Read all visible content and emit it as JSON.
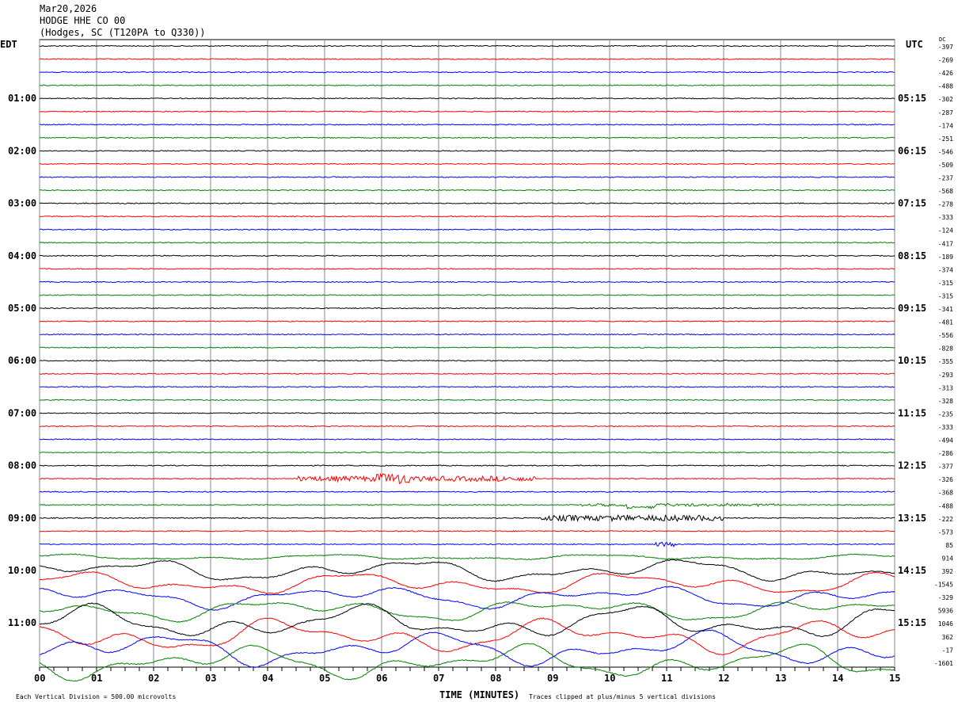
{
  "header": {
    "date": "Mar20,2026",
    "station": "HODGE HHE CO 00",
    "location": "(Hodges, SC (T120PA to Q330))"
  },
  "chart_data": {
    "type": "line",
    "title": "HODGE HHE CO 00",
    "left_timezone": "EDT",
    "right_timezone": "UTC",
    "dc_label": "DC",
    "xlabel": "TIME (MINUTES)",
    "x_ticks": [
      "00",
      "01",
      "02",
      "03",
      "04",
      "05",
      "06",
      "07",
      "08",
      "09",
      "10",
      "11",
      "12",
      "13",
      "14",
      "15"
    ],
    "xlim": [
      0,
      15
    ],
    "left_hour_labels": [
      "01:00",
      "02:00",
      "03:00",
      "04:00",
      "05:00",
      "06:00",
      "07:00",
      "08:00",
      "09:00",
      "10:00",
      "11:00"
    ],
    "right_hour_labels": [
      "05:15",
      "06:15",
      "07:15",
      "08:15",
      "09:15",
      "10:15",
      "11:15",
      "12:15",
      "13:15",
      "14:15",
      "15:15"
    ],
    "trace_colors": [
      "#000000",
      "#ff0000",
      "#0000ff",
      "#008000"
    ],
    "dc_offsets": [
      "-397",
      "-269",
      "-426",
      "-488",
      "-302",
      "-287",
      "-174",
      "-251",
      "-546",
      "-509",
      "-237",
      "-568",
      "-278",
      "-333",
      "-124",
      "-417",
      "-189",
      "-374",
      "-315",
      "-315",
      "-341",
      "-481",
      "-556",
      "-828",
      "-355",
      "-293",
      "-313",
      "-328",
      "-235",
      "-333",
      "-494",
      "-286",
      "-377",
      "-326",
      "-368",
      "-488",
      "-222",
      "-573",
      "85",
      "914",
      "392",
      "-1545",
      "-329",
      "5936",
      "1046",
      "362",
      "-17",
      "-1601"
    ],
    "scale_note": "Each Vertical Division =  500.00 microvolts",
    "clip_note": "Traces clipped at plus/minus 5 vertical divisions"
  }
}
